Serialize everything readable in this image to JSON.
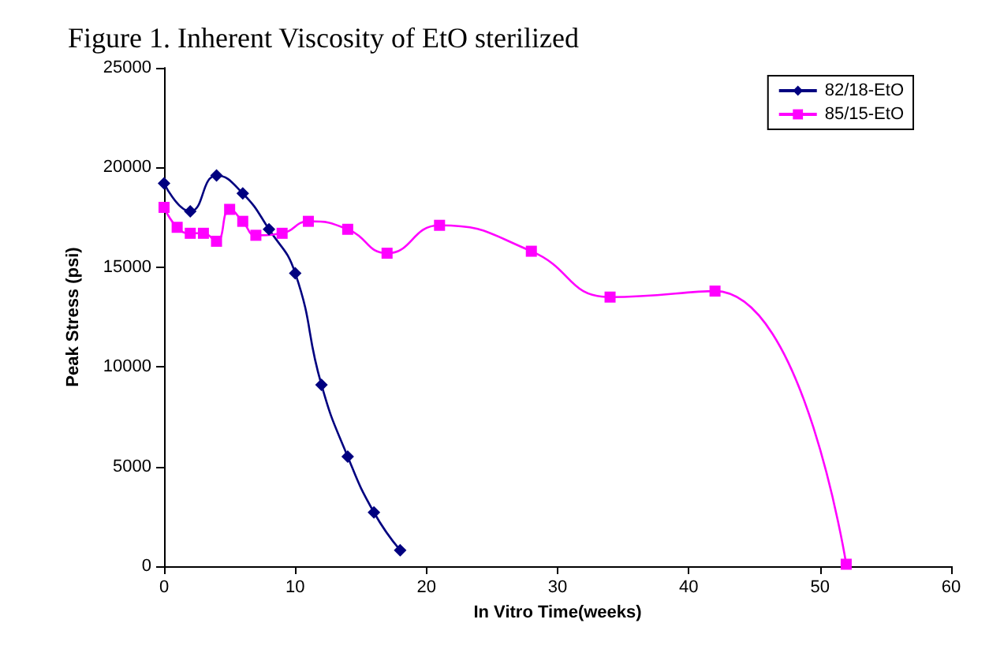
{
  "chart_data": {
    "type": "line",
    "title": "Figure 1. Inherent Viscosity of EtO sterilized",
    "xlabel": "In Vitro Time(weeks)",
    "ylabel": "Peak Stress (psi)",
    "xlim": [
      0,
      60
    ],
    "xticks": [
      0,
      10,
      20,
      30,
      40,
      50,
      60
    ],
    "ylim": [
      0,
      25000
    ],
    "yticks": [
      0,
      5000,
      10000,
      15000,
      20000,
      25000
    ],
    "grid": false,
    "legend": "top right",
    "series": [
      {
        "name": "82/18-EtO",
        "color": "#000080",
        "marker": "diamond",
        "x": [
          0,
          2,
          4,
          6,
          8,
          10,
          12,
          14,
          16,
          18
        ],
        "values": [
          19200,
          17800,
          19600,
          18700,
          16900,
          14700,
          9100,
          5500,
          2700,
          800
        ]
      },
      {
        "name": "85/15-EtO",
        "color": "#ff00ff",
        "marker": "square",
        "x": [
          0,
          1,
          2,
          3,
          4,
          5,
          6,
          7,
          9,
          11,
          14,
          17,
          21,
          28,
          34,
          42,
          52
        ],
        "values": [
          18000,
          17000,
          16700,
          16700,
          16300,
          17900,
          17300,
          16600,
          16700,
          17300,
          16900,
          15700,
          17100,
          15800,
          13500,
          13800,
          100
        ]
      }
    ]
  }
}
